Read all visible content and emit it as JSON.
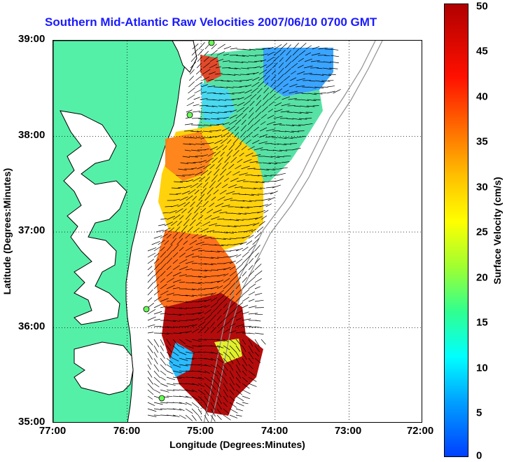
{
  "title": "Southern Mid-Atlantic Raw Velocities 2007/06/10 0700 GMT",
  "axes": {
    "x_label": "Longitude (Degrees:Minutes)",
    "y_label": "Latitude (Degrees:Minutes)",
    "x_ticks": [
      "77:00",
      "76:00",
      "75:00",
      "74:00",
      "73:00",
      "72:00"
    ],
    "y_ticks": [
      "39:00",
      "38:00",
      "37:00",
      "36:00",
      "35:00"
    ]
  },
  "colorbar": {
    "label": "Surface Velocity (cm/s)",
    "ticks": [
      "50",
      "45",
      "40",
      "35",
      "30",
      "25",
      "20",
      "15",
      "10",
      "5",
      "0"
    ],
    "min": 0,
    "max": 50
  },
  "colors": {
    "land": "#55f0a8",
    "title": "#1a1aff",
    "station": "#66ff55"
  },
  "map": {
    "lon_range": [
      -77,
      -72
    ],
    "lat_range": [
      35,
      39
    ],
    "grid": "dotted",
    "stations_shown": 4
  }
}
